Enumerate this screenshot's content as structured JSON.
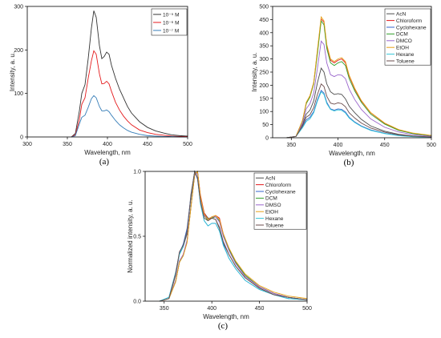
{
  "chart_data": [
    {
      "type": "line",
      "panel_label": "(a)",
      "xlabel": "Wavelength, nm",
      "ylabel": "Intensity, a. u.",
      "xlim": [
        300,
        500
      ],
      "ylim": [
        0,
        300
      ],
      "xticks": [
        300,
        350,
        400,
        450,
        500
      ],
      "yticks": [
        0,
        100,
        200,
        300
      ],
      "legend_position": "top-right",
      "series": [
        {
          "name": "10⁻⁵ M",
          "color": "#333333",
          "x": [
            355,
            360,
            365,
            368,
            372,
            376,
            380,
            383,
            386,
            390,
            393,
            396,
            399,
            402,
            405,
            410,
            415,
            420,
            425,
            430,
            440,
            450,
            460,
            470,
            480,
            490,
            500
          ],
          "y": [
            0,
            8,
            60,
            100,
            120,
            180,
            250,
            290,
            275,
            210,
            180,
            185,
            195,
            190,
            165,
            135,
            110,
            90,
            70,
            55,
            35,
            22,
            14,
            9,
            5,
            3,
            2
          ]
        },
        {
          "name": "10⁻⁶ M",
          "color": "#e41a1c",
          "x": [
            355,
            360,
            365,
            368,
            372,
            376,
            380,
            383,
            386,
            390,
            393,
            396,
            399,
            402,
            405,
            410,
            415,
            420,
            425,
            430,
            440,
            450,
            460,
            470,
            480,
            490,
            500
          ],
          "y": [
            0,
            5,
            40,
            75,
            90,
            135,
            175,
            198,
            190,
            145,
            122,
            123,
            128,
            122,
            105,
            80,
            62,
            48,
            37,
            28,
            16,
            10,
            6,
            4,
            2,
            1,
            1
          ]
        },
        {
          "name": "10⁻⁷ M",
          "color": "#377eb8",
          "x": [
            355,
            360,
            365,
            368,
            372,
            376,
            380,
            383,
            386,
            390,
            393,
            396,
            399,
            402,
            405,
            410,
            415,
            420,
            425,
            430,
            440,
            450,
            460,
            470,
            480,
            490,
            500
          ],
          "y": [
            0,
            3,
            30,
            45,
            50,
            68,
            88,
            95,
            90,
            70,
            60,
            60,
            62,
            58,
            50,
            38,
            28,
            21,
            15,
            11,
            6,
            3,
            2,
            1,
            1,
            0,
            0
          ]
        }
      ]
    },
    {
      "type": "line",
      "panel_label": "(b)",
      "xlabel": "Wavelength, nm",
      "ylabel": "Intensity, a. u.",
      "xlim": [
        330,
        500
      ],
      "ylim": [
        0,
        500
      ],
      "xticks": [
        350,
        400,
        450,
        500
      ],
      "yticks": [
        0,
        50,
        100,
        150,
        200,
        250,
        300,
        350,
        400,
        450,
        500
      ],
      "legend_position": "top-right",
      "series": [
        {
          "name": "AcN",
          "color": "#4d4d4d",
          "x": [
            345,
            355,
            362,
            366,
            370,
            374,
            378,
            382,
            385,
            388,
            392,
            396,
            400,
            404,
            408,
            412,
            418,
            425,
            435,
            450,
            465,
            480,
            500
          ],
          "y": [
            0,
            5,
            50,
            90,
            105,
            140,
            210,
            265,
            250,
            205,
            175,
            165,
            168,
            165,
            148,
            120,
            95,
            70,
            45,
            25,
            13,
            7,
            3
          ]
        },
        {
          "name": "Chloroform",
          "color": "#e41a1c",
          "x": [
            345,
            355,
            362,
            366,
            370,
            374,
            378,
            382,
            385,
            388,
            392,
            396,
            400,
            404,
            408,
            412,
            418,
            425,
            435,
            450,
            465,
            480,
            500
          ],
          "y": [
            0,
            5,
            65,
            130,
            160,
            210,
            330,
            452,
            440,
            350,
            295,
            285,
            295,
            300,
            285,
            235,
            185,
            140,
            95,
            55,
            30,
            17,
            8
          ]
        },
        {
          "name": "Cyclohexane",
          "color": "#3366cc",
          "x": [
            345,
            355,
            362,
            366,
            370,
            374,
            378,
            382,
            385,
            388,
            392,
            396,
            400,
            404,
            408,
            412,
            418,
            425,
            435,
            450,
            465,
            480,
            500
          ],
          "y": [
            0,
            5,
            40,
            68,
            78,
            100,
            145,
            180,
            170,
            135,
            110,
            105,
            110,
            108,
            98,
            78,
            60,
            45,
            30,
            17,
            9,
            5,
            2
          ]
        },
        {
          "name": "DCM",
          "color": "#33a02c",
          "x": [
            345,
            355,
            362,
            366,
            370,
            374,
            378,
            382,
            385,
            388,
            392,
            396,
            400,
            404,
            408,
            412,
            418,
            425,
            435,
            450,
            465,
            480,
            500
          ],
          "y": [
            0,
            5,
            65,
            130,
            155,
            205,
            320,
            445,
            430,
            340,
            285,
            275,
            285,
            290,
            275,
            225,
            178,
            135,
            90,
            52,
            28,
            16,
            7
          ]
        },
        {
          "name": "DMCO",
          "color": "#9966cc",
          "x": [
            345,
            355,
            362,
            366,
            370,
            374,
            378,
            382,
            385,
            388,
            392,
            396,
            400,
            404,
            408,
            412,
            418,
            425,
            435,
            450,
            465,
            480,
            500
          ],
          "y": [
            0,
            5,
            55,
            110,
            130,
            170,
            265,
            368,
            355,
            285,
            240,
            233,
            240,
            238,
            225,
            185,
            145,
            108,
            72,
            40,
            22,
            12,
            5
          ]
        },
        {
          "name": "EtOH",
          "color": "#e6a117",
          "x": [
            345,
            355,
            362,
            366,
            370,
            374,
            378,
            382,
            385,
            388,
            392,
            396,
            400,
            404,
            408,
            412,
            418,
            425,
            435,
            450,
            465,
            480,
            500
          ],
          "y": [
            0,
            5,
            65,
            135,
            160,
            210,
            335,
            460,
            445,
            355,
            300,
            290,
            300,
            305,
            290,
            238,
            188,
            142,
            96,
            56,
            31,
            18,
            9
          ]
        },
        {
          "name": "Hexane",
          "color": "#33c6d9",
          "x": [
            345,
            355,
            362,
            366,
            370,
            374,
            378,
            382,
            385,
            388,
            392,
            396,
            400,
            404,
            408,
            412,
            418,
            425,
            435,
            450,
            465,
            480,
            500
          ],
          "y": [
            0,
            5,
            38,
            62,
            72,
            95,
            140,
            175,
            165,
            130,
            108,
            102,
            106,
            104,
            94,
            75,
            58,
            43,
            28,
            16,
            8,
            4,
            2
          ]
        },
        {
          "name": "Toluene",
          "color": "#6b4c4c",
          "x": [
            345,
            355,
            362,
            366,
            370,
            374,
            378,
            382,
            385,
            388,
            392,
            396,
            400,
            404,
            408,
            412,
            418,
            425,
            435,
            450,
            465,
            480,
            500
          ],
          "y": [
            0,
            5,
            45,
            78,
            88,
            115,
            165,
            205,
            195,
            158,
            132,
            128,
            133,
            130,
            118,
            95,
            75,
            56,
            37,
            21,
            11,
            6,
            3
          ]
        }
      ]
    },
    {
      "type": "line",
      "panel_label": "(c)",
      "xlabel": "Wavelength, nm",
      "ylabel": "Normalized intensity, a. u.",
      "xlim": [
        330,
        500
      ],
      "ylim": [
        0,
        1
      ],
      "xticks": [
        350,
        400,
        450,
        500
      ],
      "yticks": [
        0.0,
        0.5,
        1.0
      ],
      "legend_position": "top-right",
      "series": [
        {
          "name": "AcN",
          "color": "#4d4d4d",
          "x": [
            345,
            355,
            362,
            366,
            370,
            374,
            378,
            382,
            385,
            388,
            392,
            396,
            400,
            404,
            408,
            412,
            418,
            425,
            435,
            450,
            465,
            480,
            500
          ],
          "y": [
            0,
            0.02,
            0.2,
            0.36,
            0.42,
            0.52,
            0.82,
            1.0,
            0.95,
            0.8,
            0.68,
            0.64,
            0.64,
            0.63,
            0.56,
            0.45,
            0.36,
            0.27,
            0.18,
            0.1,
            0.05,
            0.03,
            0.01
          ]
        },
        {
          "name": "Chloroform",
          "color": "#e41a1c",
          "x": [
            345,
            355,
            362,
            366,
            370,
            374,
            378,
            382,
            385,
            388,
            392,
            396,
            400,
            404,
            408,
            412,
            418,
            425,
            435,
            450,
            465,
            480,
            500
          ],
          "y": [
            0,
            0.02,
            0.15,
            0.3,
            0.36,
            0.46,
            0.72,
            0.97,
            1.0,
            0.82,
            0.68,
            0.63,
            0.64,
            0.66,
            0.64,
            0.52,
            0.4,
            0.3,
            0.2,
            0.11,
            0.06,
            0.03,
            0.01
          ]
        },
        {
          "name": "Cyclohexane",
          "color": "#3366cc",
          "x": [
            345,
            355,
            362,
            366,
            370,
            374,
            378,
            382,
            385,
            388,
            392,
            396,
            400,
            404,
            408,
            412,
            418,
            425,
            435,
            450,
            465,
            480,
            500
          ],
          "y": [
            0,
            0.03,
            0.22,
            0.37,
            0.44,
            0.56,
            0.8,
            1.0,
            0.94,
            0.76,
            0.62,
            0.58,
            0.6,
            0.6,
            0.54,
            0.44,
            0.33,
            0.25,
            0.16,
            0.09,
            0.05,
            0.02,
            0.01
          ]
        },
        {
          "name": "DCM",
          "color": "#33a02c",
          "x": [
            345,
            355,
            362,
            366,
            370,
            374,
            378,
            382,
            385,
            388,
            392,
            396,
            400,
            404,
            408,
            412,
            418,
            425,
            435,
            450,
            465,
            480,
            500
          ],
          "y": [
            0,
            0.02,
            0.15,
            0.3,
            0.35,
            0.46,
            0.72,
            0.98,
            1.0,
            0.8,
            0.66,
            0.62,
            0.64,
            0.65,
            0.62,
            0.51,
            0.4,
            0.3,
            0.2,
            0.11,
            0.06,
            0.03,
            0.01
          ]
        },
        {
          "name": "DMSO",
          "color": "#9966cc",
          "x": [
            345,
            355,
            362,
            366,
            370,
            374,
            378,
            382,
            385,
            388,
            392,
            396,
            400,
            404,
            408,
            412,
            418,
            425,
            435,
            450,
            465,
            480,
            500
          ],
          "y": [
            0,
            0.02,
            0.16,
            0.31,
            0.36,
            0.47,
            0.73,
            0.99,
            0.98,
            0.8,
            0.66,
            0.63,
            0.65,
            0.65,
            0.61,
            0.5,
            0.39,
            0.29,
            0.19,
            0.11,
            0.06,
            0.03,
            0.01
          ]
        },
        {
          "name": "EtOH",
          "color": "#e6a117",
          "x": [
            345,
            355,
            362,
            366,
            370,
            374,
            378,
            382,
            385,
            388,
            392,
            396,
            400,
            404,
            408,
            412,
            418,
            425,
            435,
            450,
            465,
            480,
            500
          ],
          "y": [
            0,
            0.02,
            0.15,
            0.3,
            0.35,
            0.45,
            0.72,
            0.98,
            1.0,
            0.81,
            0.67,
            0.63,
            0.65,
            0.66,
            0.63,
            0.52,
            0.41,
            0.31,
            0.21,
            0.12,
            0.07,
            0.04,
            0.02
          ]
        },
        {
          "name": "Hexane",
          "color": "#33c6d9",
          "x": [
            345,
            355,
            362,
            366,
            370,
            374,
            378,
            382,
            385,
            388,
            392,
            396,
            400,
            404,
            408,
            412,
            418,
            425,
            435,
            450,
            465,
            480,
            500
          ],
          "y": [
            0,
            0.03,
            0.22,
            0.36,
            0.42,
            0.54,
            0.79,
            1.0,
            0.95,
            0.75,
            0.62,
            0.58,
            0.6,
            0.6,
            0.54,
            0.43,
            0.33,
            0.25,
            0.16,
            0.09,
            0.05,
            0.02,
            0.01
          ]
        },
        {
          "name": "Toluene",
          "color": "#6b4c4c",
          "x": [
            345,
            355,
            362,
            366,
            370,
            374,
            378,
            382,
            385,
            388,
            392,
            396,
            400,
            404,
            408,
            412,
            418,
            425,
            435,
            450,
            465,
            480,
            500
          ],
          "y": [
            0,
            0.02,
            0.21,
            0.38,
            0.43,
            0.54,
            0.8,
            1.0,
            0.95,
            0.77,
            0.64,
            0.62,
            0.64,
            0.63,
            0.57,
            0.46,
            0.36,
            0.27,
            0.18,
            0.1,
            0.05,
            0.03,
            0.01
          ]
        }
      ]
    }
  ]
}
